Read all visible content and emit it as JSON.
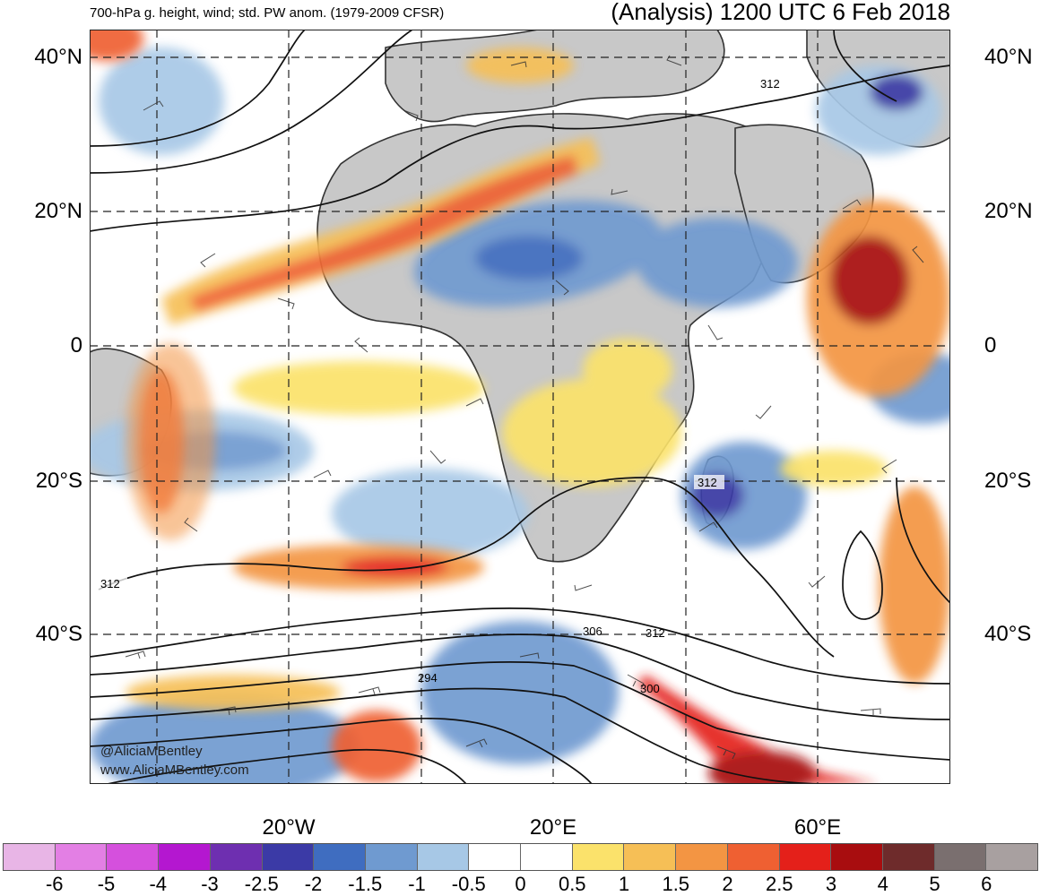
{
  "header": {
    "left_title": "700-hPa g. height, wind; std. PW anom. (1979-2009 CFSR)",
    "right_title": "(Analysis) 1200 UTC 6 Feb 2018"
  },
  "lat_labels": [
    "40°N",
    "20°N",
    "0",
    "20°S",
    "40°S"
  ],
  "lon_labels": [
    "20°W",
    "20°E",
    "60°E"
  ],
  "contour_labels": [
    "312",
    "312",
    "312",
    "306",
    "312",
    "300",
    "294"
  ],
  "credit": {
    "twitter": "@AliciaMBentley",
    "website": "www.AliciaMBentley.com"
  },
  "colorbar": {
    "ticks": [
      "-6",
      "-5",
      "-4",
      "-3",
      "-2.5",
      "-2",
      "-1.5",
      "-1",
      "-0.5",
      "0",
      "0.5",
      "1",
      "1.5",
      "2",
      "2.5",
      "3",
      "4",
      "5",
      "6"
    ],
    "colors": [
      "#e8b5e6",
      "#e37fe4",
      "#d550dd",
      "#b417d0",
      "#6e2fb0",
      "#3b3aa6",
      "#3f6dc0",
      "#6f9ad0",
      "#a7c8e6",
      "#ffffff",
      "#ffffff",
      "#fbe26b",
      "#f6bf56",
      "#f39543",
      "#ef6032",
      "#e4201a",
      "#a80d0f",
      "#6e2b2b",
      "#7a6f6f",
      "#a8a0a0"
    ]
  },
  "colors": {
    "land": "#c8c8c8",
    "ocean": "#ffffff",
    "neg_anom": "#6f9ad0",
    "pos_anom": "#ef6032"
  }
}
